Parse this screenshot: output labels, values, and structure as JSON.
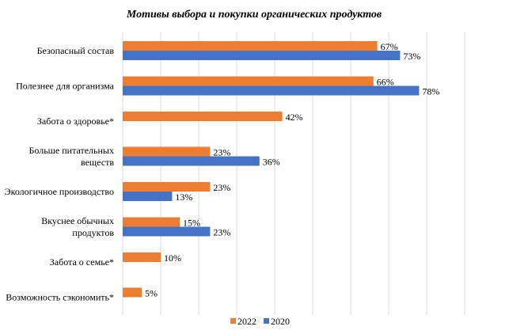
{
  "chart_data": {
    "type": "bar",
    "orientation": "horizontal",
    "title": "Мотивы выбора и покупки органических продуктов",
    "categories": [
      [
        "Безопасный состав"
      ],
      [
        "Полезнее для организма"
      ],
      [
        "Забота о здоровье*"
      ],
      [
        "Больше питательных",
        "веществ"
      ],
      [
        "Экологичное производство"
      ],
      [
        "Вкуснее обычных",
        "продуктов"
      ],
      [
        "Забота о семье*"
      ],
      [
        "Возможность сэкономить*"
      ]
    ],
    "series": [
      {
        "name": "2022",
        "color": "#ED7D31",
        "values": [
          67,
          66,
          42,
          23,
          23,
          15,
          10,
          5
        ]
      },
      {
        "name": "2020",
        "color": "#4472C4",
        "values": [
          73,
          78,
          null,
          36,
          13,
          23,
          null,
          null
        ]
      }
    ],
    "value_suffix": "%",
    "xlim": [
      0,
      90
    ],
    "grid": true,
    "legend_position": "bottom"
  }
}
